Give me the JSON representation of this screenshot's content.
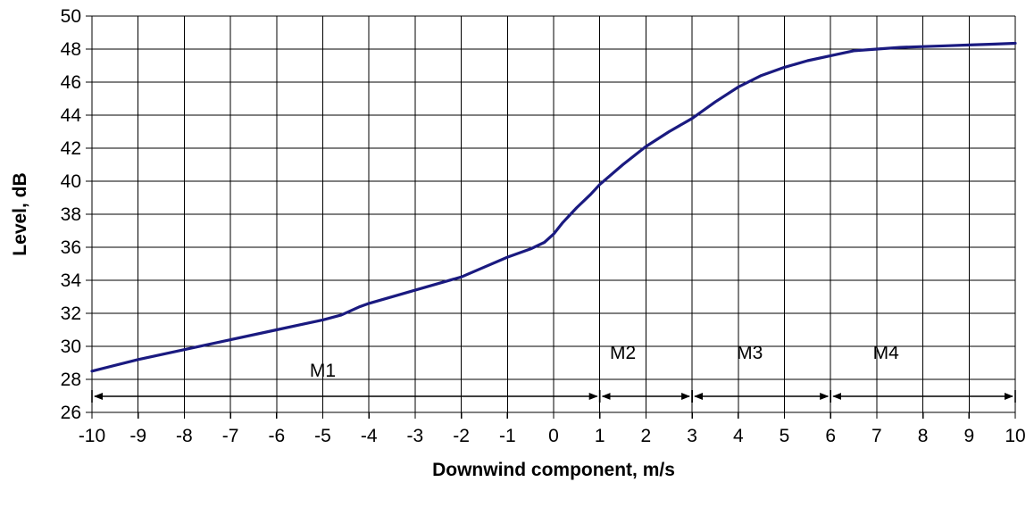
{
  "chart_data": {
    "type": "line",
    "title": "",
    "xlabel": "Downwind component, m/s",
    "ylabel": "Level, dB",
    "xlim": [
      -10,
      10
    ],
    "ylim": [
      26,
      50
    ],
    "x_ticks": [
      -10,
      -9,
      -8,
      -7,
      -6,
      -5,
      -4,
      -3,
      -2,
      -1,
      0,
      1,
      2,
      3,
      4,
      5,
      6,
      7,
      8,
      9,
      10
    ],
    "y_ticks": [
      26,
      28,
      30,
      32,
      34,
      36,
      38,
      40,
      42,
      44,
      46,
      48,
      50
    ],
    "grid": true,
    "legend": "none",
    "series": [
      {
        "color": "#1a1a80",
        "x": [
          -10,
          -9,
          -8,
          -7,
          -6,
          -5.5,
          -5,
          -4.6,
          -4.2,
          -4,
          -3,
          -2,
          -1.5,
          -1,
          -0.5,
          -0.2,
          0,
          0.2,
          0.5,
          0.8,
          1,
          1.5,
          2,
          2.5,
          3,
          3.5,
          4,
          4.5,
          5,
          5.5,
          6,
          6.5,
          7,
          7.5,
          8,
          8.5,
          9,
          9.5,
          10
        ],
        "y": [
          28.5,
          29.2,
          29.8,
          30.4,
          31.0,
          31.3,
          31.6,
          31.9,
          32.4,
          32.6,
          33.4,
          34.2,
          34.8,
          35.4,
          35.9,
          36.3,
          36.8,
          37.5,
          38.4,
          39.2,
          39.8,
          41.0,
          42.1,
          43.0,
          43.8,
          44.8,
          45.7,
          46.4,
          46.9,
          47.3,
          47.6,
          47.9,
          48.0,
          48.1,
          48.15,
          48.2,
          48.25,
          48.3,
          48.35
        ]
      }
    ],
    "regions": [
      {
        "label": "M1",
        "from": -10,
        "to": 1,
        "label_x": -5
      },
      {
        "label": "M2",
        "from": 1,
        "to": 3,
        "label_x": 1.5
      },
      {
        "label": "M3",
        "from": 3,
        "to": 6,
        "label_x": 4.25
      },
      {
        "label": "M4",
        "from": 6,
        "to": 10,
        "label_x": 7.2
      }
    ]
  }
}
